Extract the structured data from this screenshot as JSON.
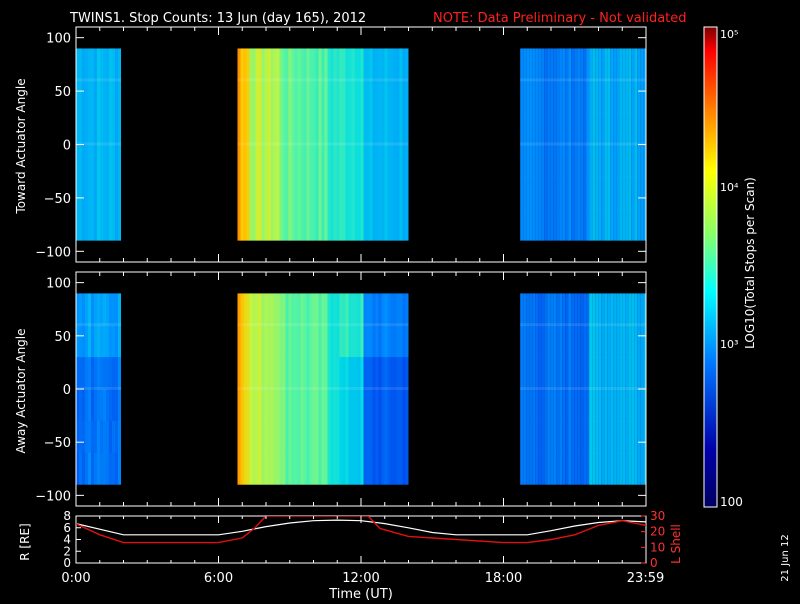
{
  "header": {
    "title": "TWINS1. Stop Counts: 13 Jun (day 165), 2012",
    "note": "NOTE: Data Preliminary - Not validated"
  },
  "side_label": "21 Jun 12",
  "colors": {
    "background": "#000000",
    "text": "#ffffff",
    "note": "#ff0000",
    "r_line": "#ffffff",
    "l_line": "#e01010"
  },
  "chart_data": [
    {
      "type": "heatmap",
      "name": "toward-panel",
      "ylabel": "Toward Actuator Angle",
      "ylim": [
        -110,
        110
      ],
      "yticks": [
        100,
        50,
        0,
        -50,
        -100
      ],
      "xlim": [
        0,
        24
      ],
      "coverage": {
        "y_range": [
          -90,
          90
        ],
        "segments": [
          [
            0,
            1.9
          ],
          [
            6.8,
            14.0
          ],
          [
            18.7,
            24.0
          ]
        ]
      },
      "dominant_level": "blue-green, with orange-red band near 7:00"
    },
    {
      "type": "heatmap",
      "name": "away-panel",
      "ylabel": "Away Actuator Angle",
      "ylim": [
        -110,
        110
      ],
      "yticks": [
        100,
        50,
        0,
        -50,
        -100
      ],
      "xlim": [
        0,
        24
      ],
      "coverage": {
        "y_range": [
          -90,
          90
        ],
        "segments": [
          [
            0,
            1.9
          ],
          [
            6.8,
            14.0
          ],
          [
            18.7,
            24.0
          ]
        ]
      },
      "dominant_level": "blue-green, with orange-red band near 7:00"
    },
    {
      "type": "line",
      "name": "orbit-panel",
      "xlabel": "Time (UT)",
      "xticks": [
        "0:00",
        "6:00",
        "12:00",
        "18:00",
        "23:59"
      ],
      "xtick_hours": [
        0,
        6,
        12,
        18,
        23.98
      ],
      "xlim": [
        0,
        24
      ],
      "left_axis": {
        "label": "R [RE]",
        "ylim": [
          0,
          8
        ],
        "ticks": [
          8,
          6,
          4,
          2,
          0
        ]
      },
      "right_axis": {
        "label": "L Shell",
        "ylim": [
          0,
          30
        ],
        "ticks": [
          30,
          20,
          10,
          0
        ]
      },
      "series": [
        {
          "name": "R [RE]",
          "x": [
            0,
            2,
            3,
            4,
            5,
            6,
            7,
            8,
            9,
            10,
            11,
            12,
            13,
            14,
            15,
            16,
            17,
            18,
            19,
            20,
            21,
            22,
            23,
            24
          ],
          "values": [
            6.7,
            4.8,
            4.8,
            4.8,
            4.8,
            4.8,
            5.4,
            6.2,
            6.8,
            7.2,
            7.3,
            7.2,
            6.7,
            6.0,
            5.2,
            4.8,
            4.8,
            4.8,
            4.8,
            5.5,
            6.3,
            6.9,
            7.2,
            7.0
          ]
        },
        {
          "name": "L Shell",
          "x": [
            0,
            1,
            2,
            3,
            4,
            5,
            6,
            7,
            7.5,
            8.0,
            12.3,
            12.8,
            14,
            16,
            18,
            19,
            20,
            21,
            22,
            23,
            24
          ],
          "values": [
            25,
            18,
            13,
            13,
            13,
            13,
            13,
            16,
            22,
            30,
            30,
            22,
            17,
            15,
            13,
            13,
            15,
            18,
            24,
            27,
            24
          ]
        }
      ]
    }
  ],
  "colorbar": {
    "title": "LOG10(Total Stops per Scan)",
    "labels": [
      "10⁵",
      "10⁴",
      "10³",
      "100"
    ],
    "stops": [
      "#7b0000",
      "#ff0000",
      "#ff8800",
      "#ffff00",
      "#88ff66",
      "#00ffff",
      "#0077ff",
      "#0000aa",
      "#000060"
    ]
  }
}
